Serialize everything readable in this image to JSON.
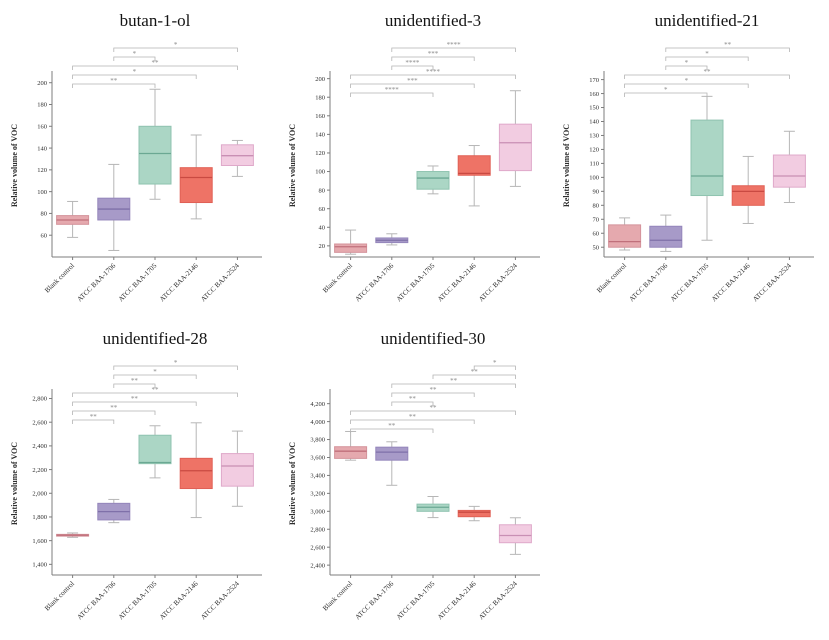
{
  "figure": {
    "categories": [
      "Blank control",
      "ATCC BAA-1706",
      "ATCC BAA-1705",
      "ATCC BAA-2146",
      "ATCC BAA-2524"
    ],
    "ylabel": "Relative volume of VOC",
    "box_styles": [
      {
        "category": "Blank control",
        "fill": "#E5A9AE",
        "stroke": "#D4939B",
        "median_color": "#C0707B"
      },
      {
        "category": "ATCC BAA-1706",
        "fill": "#A79AC8",
        "stroke": "#9486BB",
        "median_color": "#7F70A9"
      },
      {
        "category": "ATCC BAA-1705",
        "fill": "#ABD6C5",
        "stroke": "#8FC3B0",
        "median_color": "#6BA893"
      },
      {
        "category": "ATCC BAA-2146",
        "fill": "#EE7366",
        "stroke": "#E06055",
        "median_color": "#C94A42"
      },
      {
        "category": "ATCC BAA-2524",
        "fill": "#F2CCE1",
        "stroke": "#DFA9CA",
        "median_color": "#C98FB4"
      }
    ],
    "style": {
      "whisker_color": "#b6b6b6",
      "bracket_color": "#b3b3b3",
      "star_color": "#8a8a8a",
      "axis_color": "#7c7c7c",
      "tick_label_color": "#2e2e2e",
      "title_color": "#141414",
      "background": "#ffffff"
    }
  },
  "chart_data": [
    {
      "type": "box",
      "title": "butan-1-ol",
      "ylabel": "Relative volume of VOC",
      "xlabel": "",
      "grid": "off",
      "legend": "none",
      "ylim": [
        40,
        208
      ],
      "yticks": [
        60,
        80,
        100,
        120,
        140,
        160,
        180,
        200
      ],
      "boxes": [
        {
          "category": "Blank control",
          "low": 58,
          "q1": 70,
          "median": 74,
          "q3": 78,
          "high": 91
        },
        {
          "category": "ATCC BAA-1706",
          "low": 46,
          "q1": 74,
          "median": 84,
          "q3": 94,
          "high": 125
        },
        {
          "category": "ATCC BAA-1705",
          "low": 93,
          "q1": 107,
          "median": 135,
          "q3": 160,
          "high": 194
        },
        {
          "category": "ATCC BAA-2146",
          "low": 75,
          "q1": 90,
          "median": 113,
          "q3": 122,
          "high": 152
        },
        {
          "category": "ATCC BAA-2524",
          "low": 114,
          "q1": 124,
          "median": 133,
          "q3": 143,
          "high": 147
        }
      ],
      "significance": [
        {
          "a": "ATCC BAA-1706",
          "b": "ATCC BAA-2524",
          "label": "*"
        },
        {
          "a": "ATCC BAA-1706",
          "b": "ATCC BAA-1705",
          "label": "*"
        },
        {
          "a": "Blank control",
          "b": "ATCC BAA-2524",
          "label": "**"
        },
        {
          "a": "Blank control",
          "b": "ATCC BAA-2146",
          "label": "*"
        },
        {
          "a": "Blank control",
          "b": "ATCC BAA-1705",
          "label": "**"
        }
      ]
    },
    {
      "type": "box",
      "title": "unidentified-3",
      "ylabel": "Relative volume of VOC",
      "xlabel": "",
      "grid": "off",
      "legend": "none",
      "ylim": [
        8,
        205
      ],
      "yticks": [
        20,
        40,
        60,
        80,
        100,
        120,
        140,
        160,
        180,
        200
      ],
      "boxes": [
        {
          "category": "Blank control",
          "low": 11,
          "q1": 13,
          "median": 19,
          "q3": 22,
          "high": 37
        },
        {
          "category": "ATCC BAA-1706",
          "low": 21,
          "q1": 23.5,
          "median": 26,
          "q3": 28.5,
          "high": 33
        },
        {
          "category": "ATCC BAA-1705",
          "low": 76,
          "q1": 81,
          "median": 93,
          "q3": 100,
          "high": 106
        },
        {
          "category": "ATCC BAA-2146",
          "low": 63,
          "q1": 96,
          "median": 98,
          "q3": 117,
          "high": 128
        },
        {
          "category": "ATCC BAA-2524",
          "low": 84,
          "q1": 101,
          "median": 131,
          "q3": 151,
          "high": 187
        }
      ],
      "significance": [
        {
          "a": "ATCC BAA-1706",
          "b": "ATCC BAA-2524",
          "label": "****"
        },
        {
          "a": "ATCC BAA-1706",
          "b": "ATCC BAA-2146",
          "label": "***"
        },
        {
          "a": "ATCC BAA-1706",
          "b": "ATCC BAA-1705",
          "label": "****"
        },
        {
          "a": "Blank control",
          "b": "ATCC BAA-2524",
          "label": "****"
        },
        {
          "a": "Blank control",
          "b": "ATCC BAA-2146",
          "label": "***"
        },
        {
          "a": "Blank control",
          "b": "ATCC BAA-1705",
          "label": "****"
        }
      ]
    },
    {
      "type": "box",
      "title": "unidentified-21",
      "ylabel": "Relative volume of VOC",
      "xlabel": "",
      "grid": "off",
      "legend": "none",
      "ylim": [
        43,
        174
      ],
      "yticks": [
        50,
        60,
        70,
        80,
        90,
        100,
        110,
        120,
        130,
        140,
        150,
        160,
        170
      ],
      "boxes": [
        {
          "category": "Blank control",
          "low": 48,
          "q1": 50,
          "median": 54,
          "q3": 66,
          "high": 71
        },
        {
          "category": "ATCC BAA-1706",
          "low": 47,
          "q1": 50,
          "median": 55,
          "q3": 65,
          "high": 73
        },
        {
          "category": "ATCC BAA-1705",
          "low": 55,
          "q1": 87,
          "median": 101,
          "q3": 141,
          "high": 158
        },
        {
          "category": "ATCC BAA-2146",
          "low": 67,
          "q1": 80,
          "median": 90,
          "q3": 94,
          "high": 115
        },
        {
          "category": "ATCC BAA-2524",
          "low": 82,
          "q1": 93,
          "median": 101,
          "q3": 116,
          "high": 133
        }
      ],
      "significance": [
        {
          "a": "ATCC BAA-1706",
          "b": "ATCC BAA-2524",
          "label": "**"
        },
        {
          "a": "ATCC BAA-1706",
          "b": "ATCC BAA-2146",
          "label": "*"
        },
        {
          "a": "ATCC BAA-1706",
          "b": "ATCC BAA-1705",
          "label": "*"
        },
        {
          "a": "Blank control",
          "b": "ATCC BAA-2524",
          "label": "**"
        },
        {
          "a": "Blank control",
          "b": "ATCC BAA-2146",
          "label": "*"
        },
        {
          "a": "Blank control",
          "b": "ATCC BAA-1705",
          "label": "*"
        }
      ]
    },
    {
      "type": "box",
      "title": "unidentified-28",
      "ylabel": "Relative volume of VOC",
      "xlabel": "",
      "grid": "off",
      "legend": "none",
      "ylim": [
        1310,
        2855
      ],
      "yticks": [
        1400,
        1600,
        1800,
        2000,
        2200,
        2400,
        2600,
        2800
      ],
      "boxes": [
        {
          "category": "Blank control",
          "low": 1628,
          "q1": 1638,
          "median": 1646,
          "q3": 1653,
          "high": 1665
        },
        {
          "category": "ATCC BAA-1706",
          "low": 1752,
          "q1": 1775,
          "median": 1845,
          "q3": 1915,
          "high": 1948
        },
        {
          "category": "ATCC BAA-1705",
          "low": 2130,
          "q1": 2250,
          "median": 2260,
          "q3": 2490,
          "high": 2570
        },
        {
          "category": "ATCC BAA-2146",
          "low": 1795,
          "q1": 2040,
          "median": 2190,
          "q3": 2295,
          "high": 2595
        },
        {
          "category": "ATCC BAA-2524",
          "low": 1890,
          "q1": 2060,
          "median": 2230,
          "q3": 2335,
          "high": 2525
        }
      ],
      "significance": [
        {
          "a": "ATCC BAA-1706",
          "b": "ATCC BAA-2524",
          "label": "*"
        },
        {
          "a": "ATCC BAA-1706",
          "b": "ATCC BAA-2146",
          "label": "*"
        },
        {
          "a": "ATCC BAA-1706",
          "b": "ATCC BAA-1705",
          "label": "**"
        },
        {
          "a": "Blank control",
          "b": "ATCC BAA-2524",
          "label": "**"
        },
        {
          "a": "Blank control",
          "b": "ATCC BAA-2146",
          "label": "**"
        },
        {
          "a": "Blank control",
          "b": "ATCC BAA-1705",
          "label": "**"
        },
        {
          "a": "Blank control",
          "b": "ATCC BAA-1706",
          "label": "**"
        }
      ]
    },
    {
      "type": "box",
      "title": "unidentified-30",
      "ylabel": "Relative volume of VOC",
      "xlabel": "",
      "grid": "off",
      "legend": "none",
      "ylim": [
        2290,
        4330
      ],
      "yticks": [
        2400,
        2600,
        2800,
        3000,
        3200,
        3400,
        3600,
        3800,
        4000,
        4200
      ],
      "boxes": [
        {
          "category": "Blank control",
          "low": 3570,
          "q1": 3590,
          "median": 3670,
          "q3": 3720,
          "high": 3890
        },
        {
          "category": "ATCC BAA-1706",
          "low": 3290,
          "q1": 3570,
          "median": 3660,
          "q3": 3715,
          "high": 3775
        },
        {
          "category": "ATCC BAA-1705",
          "low": 2930,
          "q1": 3000,
          "median": 3045,
          "q3": 3080,
          "high": 3165
        },
        {
          "category": "ATCC BAA-2146",
          "low": 2895,
          "q1": 2940,
          "median": 2990,
          "q3": 3010,
          "high": 3055
        },
        {
          "category": "ATCC BAA-2524",
          "low": 2520,
          "q1": 2650,
          "median": 2730,
          "q3": 2850,
          "high": 2928
        }
      ],
      "significance": [
        {
          "a": "ATCC BAA-2146",
          "b": "ATCC BAA-2524",
          "label": "*"
        },
        {
          "a": "ATCC BAA-1705",
          "b": "ATCC BAA-2524",
          "label": "**"
        },
        {
          "a": "ATCC BAA-1706",
          "b": "ATCC BAA-2524",
          "label": "**"
        },
        {
          "a": "ATCC BAA-1706",
          "b": "ATCC BAA-2146",
          "label": "**"
        },
        {
          "a": "ATCC BAA-1706",
          "b": "ATCC BAA-1705",
          "label": "**"
        },
        {
          "a": "Blank control",
          "b": "ATCC BAA-2524",
          "label": "**"
        },
        {
          "a": "Blank control",
          "b": "ATCC BAA-2146",
          "label": "**"
        },
        {
          "a": "Blank control",
          "b": "ATCC BAA-1705",
          "label": "**"
        }
      ]
    }
  ]
}
